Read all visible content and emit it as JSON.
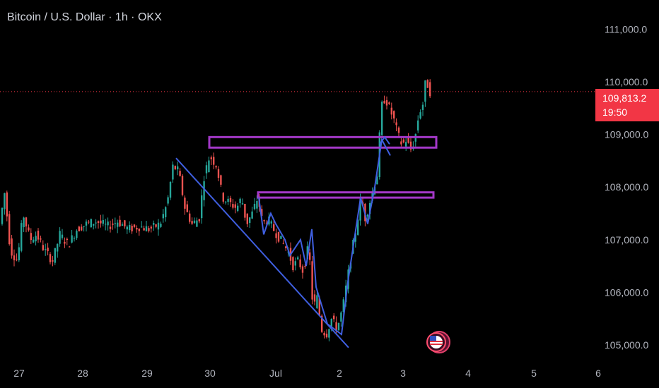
{
  "header": {
    "title": "Bitcoin / U.S. Dollar · 1h · OKX"
  },
  "colors": {
    "up": "#26a69a",
    "down": "#ef5350",
    "pattern": "#3f5fe0",
    "zone": "#a338c8",
    "tag": "#f23645",
    "background": "#000000"
  },
  "chart_data": {
    "type": "candlestick",
    "symbol": "Bitcoin / U.S. Dollar",
    "interval": "1h",
    "exchange": "OKX",
    "x_ticks": [
      "27",
      "28",
      "29",
      "30",
      "Jul",
      "2",
      "3",
      "4",
      "5",
      "6"
    ],
    "y_ticks": [
      "105,000.0",
      "106,000.0",
      "107,000.0",
      "108,000.0",
      "109,000.0",
      "110,000.0",
      "111,000.0"
    ],
    "ylim": [
      104850,
      111600
    ],
    "last_price": {
      "value": 109813.2,
      "label": "109,813.2",
      "countdown": "19:50"
    },
    "key_points": [
      {
        "time": "Jun 29",
        "value": 108500
      },
      {
        "time": "Jun 30",
        "value": 108700
      },
      {
        "time": "Jul 2",
        "value": 105200
      },
      {
        "time": "Jul 2",
        "value": 107900
      },
      {
        "time": "Jul 3",
        "value": 109800
      },
      {
        "time": "Jul 3",
        "value": 110300
      }
    ],
    "zones": [
      {
        "name": "upper-resistance-zone",
        "from": 108750,
        "to": 108950
      },
      {
        "name": "lower-resistance-zone",
        "from": 107800,
        "to": 107900
      }
    ]
  }
}
